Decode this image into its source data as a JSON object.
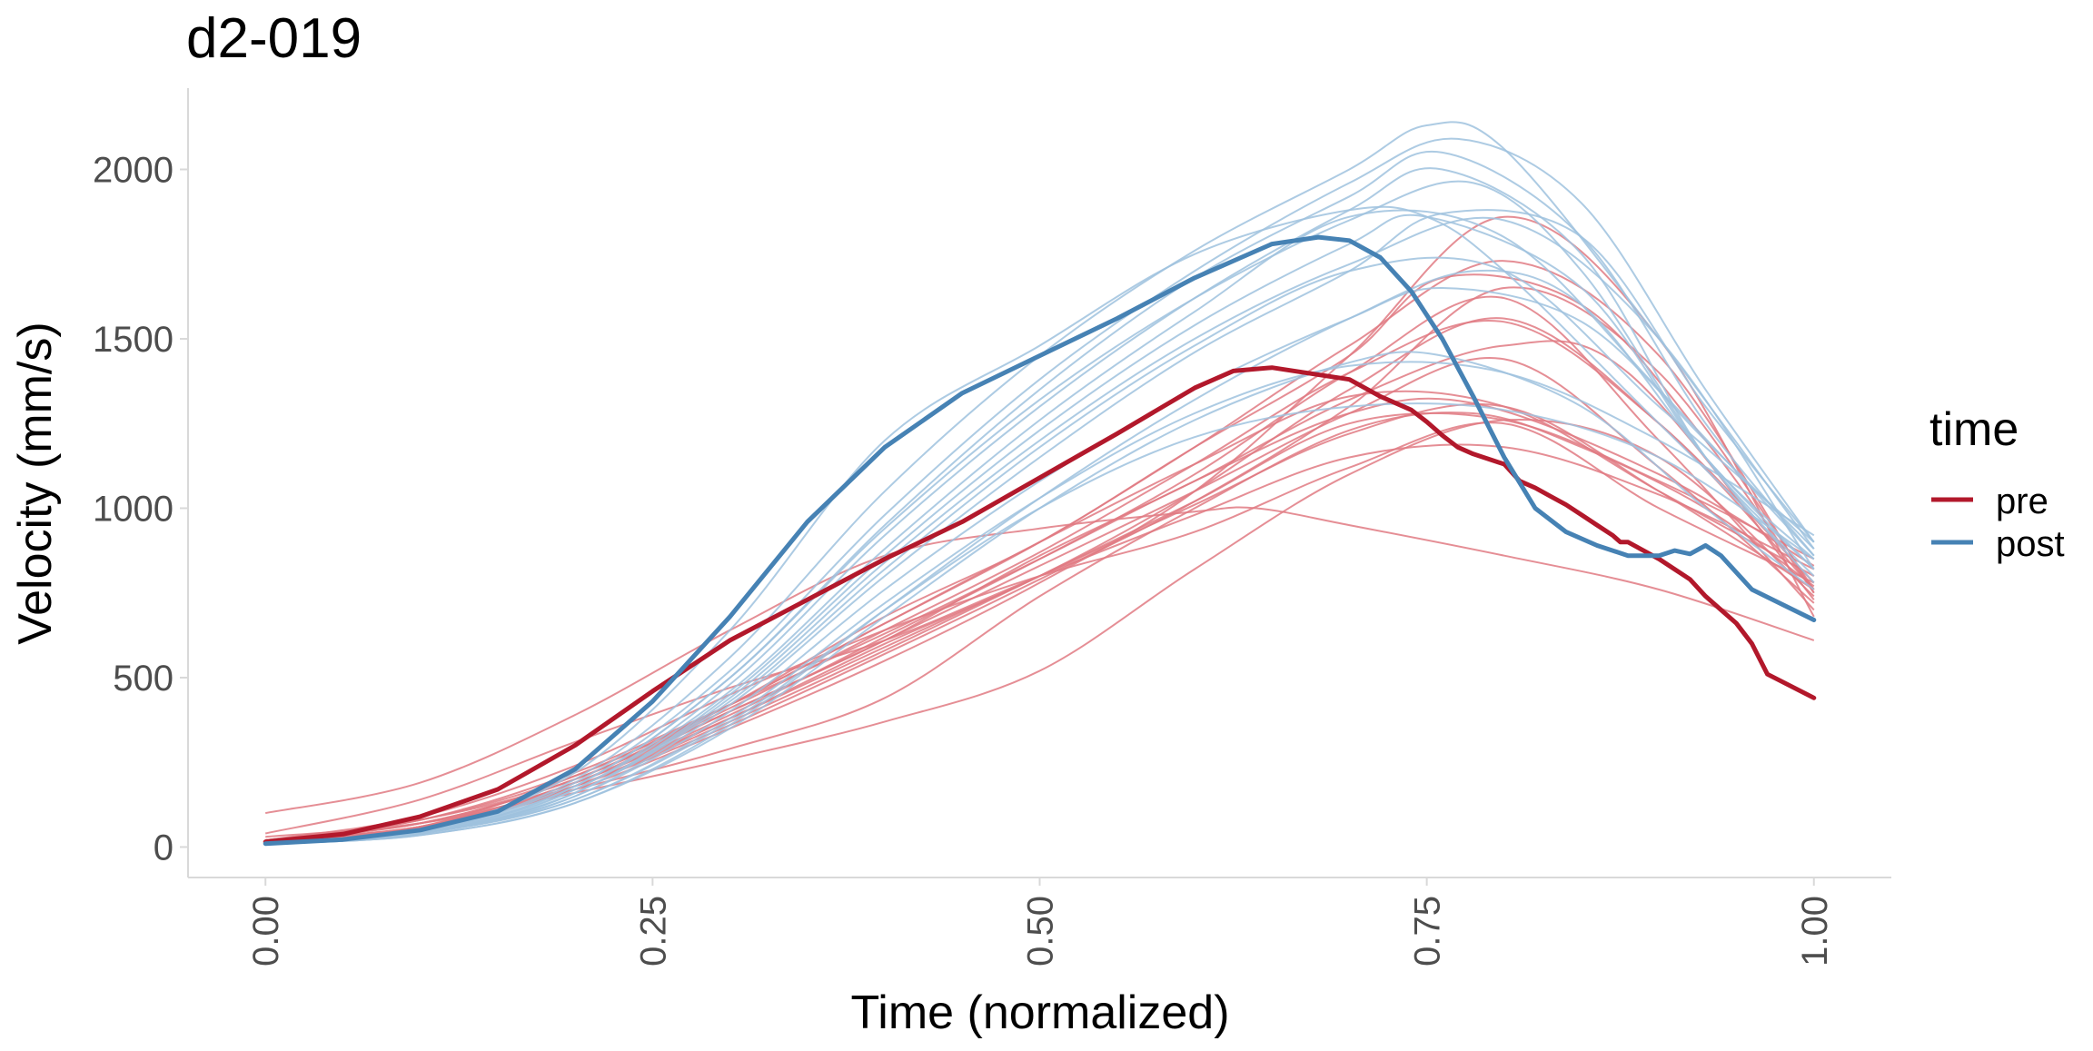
{
  "chart_data": {
    "type": "line",
    "title": "d2-019",
    "xlabel": "Time (normalized)",
    "ylabel": "Velocity (mm/s)",
    "xlim": [
      -0.05,
      1.05
    ],
    "ylim": [
      -90,
      2240
    ],
    "x_ticks": [
      0.0,
      0.25,
      0.5,
      0.75,
      1.0
    ],
    "x_tick_labels": [
      "0.00",
      "0.25",
      "0.50",
      "0.75",
      "1.00"
    ],
    "y_ticks": [
      0,
      500,
      1000,
      1500,
      2000
    ],
    "y_tick_labels": [
      "0",
      "500",
      "1000",
      "1500",
      "2000"
    ],
    "grid": false,
    "legend": {
      "title": "time",
      "position": "right",
      "entries": [
        {
          "label": "pre",
          "color": "#b2182b"
        },
        {
          "label": "post",
          "color": "#4682b4"
        }
      ]
    },
    "colors": {
      "pre": "#b2182b",
      "post": "#4682b4"
    },
    "mean_series": [
      {
        "name": "pre",
        "x": [
          0,
          0.05,
          0.1,
          0.15,
          0.2,
          0.25,
          0.3,
          0.35,
          0.4,
          0.45,
          0.5,
          0.55,
          0.6,
          0.625,
          0.65,
          0.7,
          0.72,
          0.74,
          0.75,
          0.76,
          0.77,
          0.78,
          0.8,
          0.81,
          0.82,
          0.83,
          0.84,
          0.85,
          0.86,
          0.87,
          0.875,
          0.88,
          0.9,
          0.91,
          0.92,
          0.93,
          0.94,
          0.95,
          0.96,
          0.97,
          1.0
        ],
        "y": [
          15,
          38,
          90,
          170,
          300,
          460,
          610,
          730,
          850,
          960,
          1090,
          1220,
          1355,
          1405,
          1415,
          1380,
          1330,
          1290,
          1255,
          1215,
          1180,
          1160,
          1130,
          1080,
          1060,
          1035,
          1010,
          980,
          950,
          920,
          900,
          900,
          850,
          820,
          790,
          740,
          700,
          660,
          600,
          510,
          440
        ]
      },
      {
        "name": "post",
        "x": [
          0,
          0.05,
          0.1,
          0.15,
          0.2,
          0.25,
          0.3,
          0.35,
          0.4,
          0.45,
          0.5,
          0.55,
          0.6,
          0.65,
          0.68,
          0.7,
          0.72,
          0.74,
          0.76,
          0.78,
          0.8,
          0.82,
          0.84,
          0.86,
          0.88,
          0.9,
          0.91,
          0.92,
          0.93,
          0.94,
          0.96,
          1.0
        ],
        "y": [
          10,
          22,
          50,
          105,
          230,
          430,
          680,
          960,
          1180,
          1340,
          1450,
          1560,
          1680,
          1780,
          1800,
          1790,
          1740,
          1640,
          1500,
          1330,
          1150,
          1000,
          930,
          890,
          860,
          860,
          875,
          865,
          890,
          860,
          760,
          670
        ]
      }
    ],
    "individual_series_note": "",
    "individual_series": {
      "pre": [
        {
          "x": [
            0,
            0.1,
            0.2,
            0.3,
            0.4,
            0.5,
            0.6,
            0.64,
            0.7,
            0.8,
            0.9,
            1.0
          ],
          "y": [
            100,
            190,
            390,
            640,
            860,
            940,
            990,
            1000,
            950,
            860,
            760,
            610
          ]
        },
        {
          "x": [
            0,
            0.1,
            0.2,
            0.3,
            0.4,
            0.5,
            0.6,
            0.7,
            0.78,
            0.85,
            0.93,
            1.0
          ],
          "y": [
            20,
            60,
            170,
            290,
            440,
            740,
            1000,
            1230,
            1280,
            1180,
            1000,
            770
          ]
        },
        {
          "x": [
            0,
            0.1,
            0.2,
            0.3,
            0.4,
            0.5,
            0.6,
            0.7,
            0.8,
            0.9,
            1.0
          ],
          "y": [
            30,
            70,
            160,
            260,
            370,
            520,
            820,
            1100,
            1260,
            1150,
            740
          ]
        },
        {
          "x": [
            0,
            0.1,
            0.2,
            0.3,
            0.4,
            0.5,
            0.6,
            0.7,
            0.76,
            0.85,
            0.93,
            1.0
          ],
          "y": [
            20,
            80,
            200,
            420,
            680,
            900,
            1180,
            1450,
            1680,
            1600,
            1200,
            750
          ]
        },
        {
          "x": [
            0,
            0.1,
            0.2,
            0.3,
            0.4,
            0.5,
            0.6,
            0.7,
            0.8,
            0.9,
            1.0
          ],
          "y": [
            20,
            90,
            240,
            450,
            640,
            800,
            930,
            1120,
            1250,
            1000,
            780
          ]
        },
        {
          "x": [
            0,
            0.1,
            0.2,
            0.3,
            0.4,
            0.5,
            0.6,
            0.7,
            0.8,
            0.9,
            1.0
          ],
          "y": [
            15,
            60,
            210,
            420,
            660,
            900,
            1130,
            1330,
            1300,
            1050,
            800
          ]
        },
        {
          "x": [
            0,
            0.1,
            0.2,
            0.3,
            0.4,
            0.5,
            0.6,
            0.7,
            0.8,
            0.9,
            1.0
          ],
          "y": [
            15,
            55,
            180,
            380,
            600,
            800,
            1050,
            1350,
            1560,
            1250,
            760
          ]
        },
        {
          "x": [
            0,
            0.1,
            0.2,
            0.3,
            0.4,
            0.5,
            0.6,
            0.7,
            0.8,
            0.88,
            1.0
          ],
          "y": [
            20,
            60,
            190,
            400,
            610,
            860,
            1080,
            1320,
            1480,
            1400,
            730
          ]
        },
        {
          "x": [
            0,
            0.1,
            0.2,
            0.3,
            0.4,
            0.5,
            0.6,
            0.7,
            0.8,
            0.9,
            1.0
          ],
          "y": [
            40,
            140,
            310,
            470,
            610,
            800,
            980,
            1150,
            1180,
            1040,
            820
          ]
        },
        {
          "x": [
            0,
            0.1,
            0.2,
            0.3,
            0.4,
            0.5,
            0.6,
            0.7,
            0.78,
            0.9,
            1.0
          ],
          "y": [
            20,
            80,
            220,
            420,
            630,
            850,
            1080,
            1280,
            1310,
            1100,
            830
          ]
        },
        {
          "x": [
            0,
            0.1,
            0.2,
            0.3,
            0.4,
            0.5,
            0.6,
            0.7,
            0.8,
            0.9,
            1.0
          ],
          "y": [
            20,
            70,
            200,
            400,
            610,
            830,
            1050,
            1280,
            1440,
            1120,
            720
          ]
        },
        {
          "x": [
            0,
            0.1,
            0.2,
            0.3,
            0.4,
            0.5,
            0.6,
            0.7,
            0.8,
            0.9,
            1.0
          ],
          "y": [
            15,
            60,
            190,
            390,
            620,
            850,
            1100,
            1400,
            1620,
            1200,
            700
          ]
        },
        {
          "x": [
            0,
            0.1,
            0.2,
            0.3,
            0.4,
            0.5,
            0.6,
            0.7,
            0.8,
            0.9,
            1.0
          ],
          "y": [
            20,
            70,
            180,
            360,
            570,
            790,
            1020,
            1300,
            1650,
            1400,
            760
          ]
        },
        {
          "x": [
            0,
            0.1,
            0.2,
            0.3,
            0.4,
            0.5,
            0.6,
            0.7,
            0.8,
            0.9,
            1.0
          ],
          "y": [
            15,
            55,
            170,
            350,
            550,
            780,
            1050,
            1450,
            1860,
            1500,
            680
          ]
        },
        {
          "x": [
            0,
            0.1,
            0.2,
            0.3,
            0.4,
            0.5,
            0.6,
            0.7,
            0.8,
            0.9,
            1.0
          ],
          "y": [
            20,
            60,
            190,
            380,
            590,
            800,
            1010,
            1220,
            1300,
            1050,
            760
          ]
        },
        {
          "x": [
            0,
            0.1,
            0.2,
            0.3,
            0.4,
            0.5,
            0.6,
            0.7,
            0.8,
            0.9,
            1.0
          ],
          "y": [
            20,
            70,
            200,
            410,
            640,
            870,
            1130,
            1400,
            1550,
            1250,
            780
          ]
        },
        {
          "x": [
            0,
            0.1,
            0.2,
            0.3,
            0.4,
            0.5,
            0.6,
            0.7,
            0.8,
            0.9,
            1.0
          ],
          "y": [
            20,
            80,
            210,
            420,
            660,
            900,
            1180,
            1480,
            1730,
            1450,
            750
          ]
        },
        {
          "x": [
            0,
            0.1,
            0.2,
            0.3,
            0.4,
            0.5,
            0.6,
            0.7,
            0.8,
            0.9,
            1.0
          ],
          "y": [
            20,
            60,
            180,
            370,
            580,
            800,
            1020,
            1250,
            1260,
            1080,
            850
          ]
        }
      ],
      "post": [
        {
          "x": [
            0,
            0.1,
            0.2,
            0.3,
            0.4,
            0.5,
            0.6,
            0.7,
            0.75,
            0.8,
            0.9,
            1.0
          ],
          "y": [
            10,
            50,
            220,
            640,
            1200,
            1480,
            1750,
            1880,
            1860,
            1700,
            1250,
            800
          ]
        },
        {
          "x": [
            0,
            0.1,
            0.2,
            0.3,
            0.4,
            0.5,
            0.6,
            0.7,
            0.75,
            0.8,
            0.9,
            1.0
          ],
          "y": [
            10,
            45,
            200,
            560,
            1050,
            1450,
            1760,
            2000,
            2130,
            2060,
            1500,
            880
          ]
        },
        {
          "x": [
            0,
            0.1,
            0.2,
            0.3,
            0.4,
            0.5,
            0.6,
            0.7,
            0.77,
            0.85,
            0.93,
            1.0
          ],
          "y": [
            10,
            45,
            190,
            520,
            980,
            1380,
            1700,
            1960,
            2090,
            1900,
            1350,
            900
          ]
        },
        {
          "x": [
            0,
            0.1,
            0.2,
            0.3,
            0.4,
            0.5,
            0.6,
            0.7,
            0.76,
            0.85,
            0.93,
            1.0
          ],
          "y": [
            10,
            40,
            180,
            500,
            950,
            1350,
            1680,
            1920,
            2050,
            1800,
            1250,
            860
          ]
        },
        {
          "x": [
            0,
            0.1,
            0.2,
            0.3,
            0.4,
            0.5,
            0.6,
            0.7,
            0.76,
            0.85,
            0.93,
            1.0
          ],
          "y": [
            10,
            40,
            170,
            480,
            920,
            1300,
            1620,
            1880,
            2000,
            1750,
            1150,
            820
          ]
        },
        {
          "x": [
            0,
            0.1,
            0.2,
            0.3,
            0.4,
            0.5,
            0.6,
            0.7,
            0.78,
            0.85,
            0.93,
            1.0
          ],
          "y": [
            10,
            45,
            180,
            500,
            940,
            1320,
            1620,
            1850,
            1960,
            1700,
            1150,
            780
          ]
        },
        {
          "x": [
            0,
            0.1,
            0.2,
            0.3,
            0.4,
            0.5,
            0.6,
            0.7,
            0.76,
            0.85,
            0.93,
            1.0
          ],
          "y": [
            10,
            40,
            150,
            420,
            800,
            1150,
            1460,
            1700,
            1870,
            1800,
            1300,
            900
          ]
        },
        {
          "x": [
            0,
            0.1,
            0.2,
            0.3,
            0.4,
            0.5,
            0.6,
            0.7,
            0.75,
            0.85,
            0.93,
            1.0
          ],
          "y": [
            10,
            40,
            160,
            450,
            860,
            1230,
            1540,
            1780,
            1860,
            1650,
            1150,
            850
          ]
        },
        {
          "x": [
            0,
            0.1,
            0.2,
            0.3,
            0.4,
            0.5,
            0.6,
            0.7,
            0.78,
            0.85,
            0.93,
            1.0
          ],
          "y": [
            10,
            35,
            130,
            360,
            700,
            1030,
            1320,
            1560,
            1700,
            1600,
            1150,
            820
          ]
        },
        {
          "x": [
            0,
            0.1,
            0.2,
            0.3,
            0.4,
            0.5,
            0.6,
            0.7,
            0.76,
            0.85,
            0.93,
            1.0
          ],
          "y": [
            10,
            35,
            130,
            350,
            680,
            1000,
            1260,
            1430,
            1450,
            1300,
            1000,
            760
          ]
        },
        {
          "x": [
            0,
            0.1,
            0.2,
            0.3,
            0.4,
            0.5,
            0.6,
            0.7,
            0.8,
            0.9,
            1.0
          ],
          "y": [
            10,
            40,
            140,
            370,
            700,
            1000,
            1210,
            1300,
            1290,
            1150,
            850
          ]
        },
        {
          "x": [
            0,
            0.1,
            0.2,
            0.3,
            0.4,
            0.5,
            0.6,
            0.7,
            0.76,
            0.85,
            0.93,
            1.0
          ],
          "y": [
            10,
            40,
            150,
            400,
            760,
            1080,
            1350,
            1560,
            1650,
            1550,
            1200,
            880
          ]
        },
        {
          "x": [
            0,
            0.1,
            0.2,
            0.3,
            0.4,
            0.5,
            0.6,
            0.7,
            0.8,
            0.9,
            1.0
          ],
          "y": [
            10,
            40,
            160,
            430,
            820,
            1180,
            1480,
            1700,
            1700,
            1300,
            900
          ]
        },
        {
          "x": [
            0,
            0.1,
            0.2,
            0.3,
            0.4,
            0.5,
            0.6,
            0.7,
            0.8,
            0.9,
            1.0
          ],
          "y": [
            10,
            40,
            140,
            380,
            720,
            1030,
            1280,
            1420,
            1400,
            1200,
            920
          ]
        },
        {
          "x": [
            0,
            0.1,
            0.2,
            0.3,
            0.4,
            0.5,
            0.6,
            0.7,
            0.8,
            0.9,
            1.0
          ],
          "y": [
            10,
            45,
            170,
            460,
            880,
            1260,
            1580,
            1860,
            1800,
            1350,
            860
          ]
        },
        {
          "x": [
            0,
            0.1,
            0.2,
            0.3,
            0.4,
            0.5,
            0.6,
            0.7,
            0.8,
            0.9,
            1.0
          ],
          "y": [
            10,
            40,
            160,
            440,
            840,
            1200,
            1500,
            1720,
            1850,
            1500,
            820
          ]
        }
      ]
    }
  }
}
